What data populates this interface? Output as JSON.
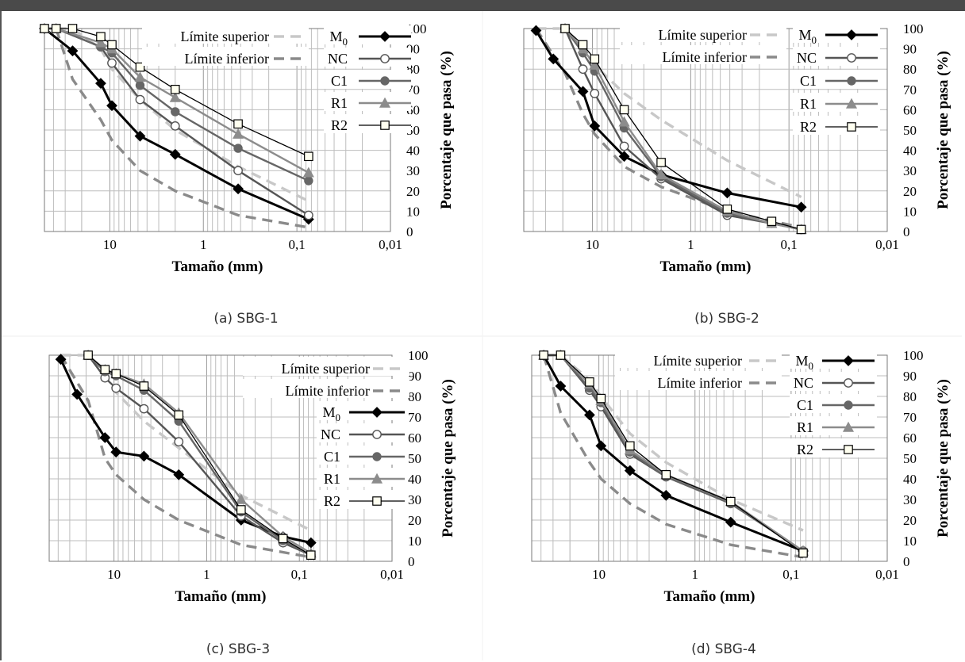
{
  "chart_data": [
    {
      "type": "line",
      "caption": "(a) SBG-1",
      "xlabel": "Tamaño (mm)",
      "ylabel": "Porcentaje que pasa (%)",
      "x_scale": "log",
      "x_reversed": true,
      "xlim": [
        50,
        0.01
      ],
      "ylim": [
        0,
        100
      ],
      "xticks": [
        "10",
        "1",
        "0,1",
        "0,01"
      ],
      "yticks": [
        "0",
        "10",
        "20",
        "30",
        "40",
        "50",
        "60",
        "70",
        "80",
        "90",
        "100"
      ],
      "legend_position": "top-right",
      "limits": [
        {
          "name": "Límite superior",
          "x": [
            37.5,
            25,
            12.5,
            9.5,
            4.75,
            2,
            0.425,
            0.075
          ],
          "y": [
            100,
            100,
            90,
            80,
            65,
            50,
            32,
            15
          ]
        },
        {
          "name": "Límite inferior",
          "x": [
            37.5,
            25,
            12.5,
            9.5,
            4.75,
            2,
            0.425,
            0.075
          ],
          "y": [
            100,
            75,
            55,
            45,
            30,
            20,
            8,
            2
          ]
        }
      ],
      "series": [
        {
          "name": "M0",
          "x": [
            50,
            25,
            12.5,
            9.5,
            4.75,
            2,
            0.425,
            0.075
          ],
          "y": [
            100,
            89,
            73,
            62,
            47,
            38,
            21,
            6
          ]
        },
        {
          "name": "NC",
          "x": [
            50,
            37.5,
            12.5,
            9.5,
            4.75,
            2,
            0.425,
            0.075
          ],
          "y": [
            100,
            100,
            91,
            83,
            65,
            52,
            30,
            8
          ]
        },
        {
          "name": "C1",
          "x": [
            50,
            37.5,
            12.5,
            9.5,
            4.75,
            2,
            0.425,
            0.075
          ],
          "y": [
            100,
            100,
            91,
            88,
            72,
            59,
            41,
            25
          ]
        },
        {
          "name": "R1",
          "x": [
            50,
            37.5,
            12.5,
            9.5,
            4.75,
            2,
            0.425,
            0.075
          ],
          "y": [
            100,
            100,
            93,
            90,
            76,
            66,
            48,
            29
          ]
        },
        {
          "name": "R2",
          "x": [
            50,
            37.5,
            25,
            12.5,
            9.5,
            4.75,
            2,
            0.425,
            0.075
          ],
          "y": [
            100,
            100,
            100,
            96,
            92,
            81,
            70,
            53,
            37
          ]
        }
      ]
    },
    {
      "type": "line",
      "caption": "(b) SBG-2",
      "xlabel": "Tamaño (mm)",
      "ylabel": "Porcentaje que pasa (%)",
      "x_scale": "log",
      "x_reversed": true,
      "xlim": [
        50,
        0.01
      ],
      "ylim": [
        0,
        100
      ],
      "xticks": [
        "10",
        "1",
        "0,1",
        "0,01"
      ],
      "yticks": [
        "0",
        "10",
        "20",
        "30",
        "40",
        "50",
        "60",
        "70",
        "80",
        "90",
        "100"
      ],
      "legend_position": "top-right",
      "limits": [
        {
          "name": "Límite superior",
          "x": [
            37.5,
            19,
            12.5,
            9.5,
            4.75,
            2,
            0.425,
            0.075
          ],
          "y": [
            100,
            100,
            90,
            82,
            68,
            55,
            35,
            17
          ]
        },
        {
          "name": "Límite inferior",
          "x": [
            37.5,
            19,
            12.5,
            9.5,
            4.75,
            2,
            0.425,
            0.075
          ],
          "y": [
            100,
            78,
            58,
            48,
            32,
            22,
            10,
            2
          ]
        }
      ],
      "series": [
        {
          "name": "M0",
          "x": [
            37.5,
            25,
            12.5,
            9.5,
            4.75,
            2,
            0.425,
            0.075
          ],
          "y": [
            99,
            85,
            69,
            52,
            37,
            28,
            19,
            12
          ]
        },
        {
          "name": "NC",
          "x": [
            19,
            12.5,
            9.5,
            4.75,
            2,
            0.425,
            0.15,
            0.075
          ],
          "y": [
            100,
            80,
            68,
            42,
            26,
            8,
            4,
            1
          ]
        },
        {
          "name": "C1",
          "x": [
            19,
            12.5,
            9.5,
            4.75,
            2,
            0.425,
            0.15,
            0.075
          ],
          "y": [
            100,
            88,
            79,
            51,
            27,
            9,
            4,
            1
          ]
        },
        {
          "name": "R1",
          "x": [
            19,
            12.5,
            9.5,
            4.75,
            2,
            0.425,
            0.15,
            0.075
          ],
          "y": [
            100,
            90,
            82,
            54,
            28,
            10,
            4,
            1
          ]
        },
        {
          "name": "R2",
          "x": [
            19,
            12.5,
            9.5,
            4.75,
            2,
            0.425,
            0.15,
            0.075
          ],
          "y": [
            100,
            92,
            85,
            60,
            34,
            11,
            5,
            1
          ]
        }
      ]
    },
    {
      "type": "line",
      "caption": "(c) SBG-3",
      "xlabel": "Tamaño (mm)",
      "ylabel": "Porcentaje que pasa (%)",
      "x_scale": "log",
      "x_reversed": true,
      "xlim": [
        50,
        0.01
      ],
      "ylim": [
        0,
        100
      ],
      "xticks": [
        "10",
        "1",
        "0,1",
        "0,01"
      ],
      "yticks": [
        "0",
        "10",
        "20",
        "30",
        "40",
        "50",
        "60",
        "70",
        "80",
        "90",
        "100"
      ],
      "legend_position": "top-right",
      "limits": [
        {
          "name": "Límite superior",
          "x": [
            37.5,
            19,
            12.5,
            9.5,
            4.75,
            2,
            0.425,
            0.075
          ],
          "y": [
            100,
            100,
            90,
            82,
            68,
            55,
            32,
            15
          ]
        },
        {
          "name": "Límite inferior",
          "x": [
            37.5,
            19,
            12.5,
            9.5,
            4.75,
            2,
            0.425,
            0.075
          ],
          "y": [
            100,
            78,
            50,
            42,
            30,
            20,
            8,
            2
          ]
        }
      ],
      "series": [
        {
          "name": "M0",
          "x": [
            37.5,
            25,
            12.5,
            9.5,
            4.75,
            2,
            0.425,
            0.15,
            0.075
          ],
          "y": [
            98,
            81,
            60,
            53,
            51,
            42,
            20,
            12,
            9
          ]
        },
        {
          "name": "NC",
          "x": [
            19,
            12.5,
            9.5,
            4.75,
            2,
            0.425,
            0.15,
            0.075
          ],
          "y": [
            100,
            89,
            84,
            74,
            58,
            22,
            9,
            3
          ]
        },
        {
          "name": "C1",
          "x": [
            19,
            12.5,
            9.5,
            4.75,
            2,
            0.425,
            0.15,
            0.075
          ],
          "y": [
            100,
            92,
            90,
            83,
            68,
            24,
            10,
            3
          ]
        },
        {
          "name": "R1",
          "x": [
            19,
            12.5,
            9.5,
            4.75,
            2,
            0.425,
            0.15,
            0.075
          ],
          "y": [
            100,
            93,
            91,
            86,
            72,
            30,
            12,
            4
          ]
        },
        {
          "name": "R2",
          "x": [
            19,
            12.5,
            9.5,
            4.75,
            2,
            0.425,
            0.15,
            0.075
          ],
          "y": [
            100,
            93,
            91,
            85,
            71,
            25,
            11,
            3
          ]
        }
      ]
    },
    {
      "type": "line",
      "caption": "(d) SBG-4",
      "xlabel": "Tamaño (mm)",
      "ylabel": "Porcentaje que pasa (%)",
      "x_scale": "log",
      "x_reversed": true,
      "xlim": [
        50,
        0.01
      ],
      "ylim": [
        0,
        100
      ],
      "xticks": [
        "10",
        "1",
        "0,1",
        "0,01"
      ],
      "yticks": [
        "0",
        "10",
        "20",
        "30",
        "40",
        "50",
        "60",
        "70",
        "80",
        "90",
        "100"
      ],
      "legend_position": "top-right",
      "limits": [
        {
          "name": "Límite superior",
          "x": [
            37.5,
            25,
            12.5,
            9.5,
            4.75,
            2,
            0.425,
            0.075
          ],
          "y": [
            100,
            100,
            88,
            80,
            62,
            48,
            30,
            15
          ]
        },
        {
          "name": "Límite inferior",
          "x": [
            37.5,
            25,
            12.5,
            9.5,
            4.75,
            2,
            0.425,
            0.075
          ],
          "y": [
            100,
            72,
            48,
            40,
            28,
            18,
            8,
            2
          ]
        }
      ],
      "series": [
        {
          "name": "M0",
          "x": [
            37.5,
            25,
            12.5,
            9.5,
            4.75,
            2,
            0.425,
            0.075
          ],
          "y": [
            100,
            85,
            71,
            56,
            44,
            32,
            19,
            5
          ]
        },
        {
          "name": "NC",
          "x": [
            37.5,
            25,
            12.5,
            9.5,
            4.75,
            2,
            0.425,
            0.075
          ],
          "y": [
            100,
            100,
            83,
            75,
            52,
            41,
            28,
            5
          ]
        },
        {
          "name": "C1",
          "x": [
            37.5,
            25,
            12.5,
            9.5,
            4.75,
            2,
            0.425,
            0.075
          ],
          "y": [
            100,
            100,
            84,
            77,
            53,
            41,
            28,
            5
          ]
        },
        {
          "name": "R1",
          "x": [
            37.5,
            25,
            12.5,
            9.5,
            4.75,
            2,
            0.425,
            0.075
          ],
          "y": [
            100,
            100,
            86,
            78,
            54,
            42,
            29,
            5
          ]
        },
        {
          "name": "R2",
          "x": [
            37.5,
            25,
            12.5,
            9.5,
            4.75,
            2,
            0.425,
            0.075
          ],
          "y": [
            100,
            100,
            87,
            79,
            56,
            42,
            29,
            4
          ]
        }
      ]
    }
  ],
  "style": {
    "limit_colors": {
      "Límite superior": "#c8c8c8",
      "Límite inferior": "#8a8a8a"
    },
    "series_colors": {
      "M0": "#000000",
      "NC": "#555555",
      "C1": "#666666",
      "R1": "#8c8c8c",
      "R2": "#000000"
    },
    "markers": {
      "M0": "diamond-filled",
      "NC": "circle-open",
      "C1": "circle-filled",
      "R1": "triangle-filled",
      "R2": "square-open"
    }
  }
}
